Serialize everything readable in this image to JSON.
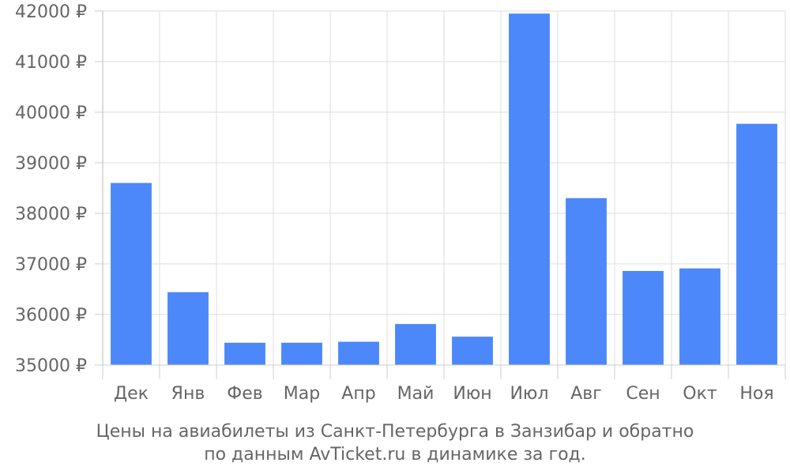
{
  "chart_data": {
    "type": "bar",
    "categories": [
      "Дек",
      "Янв",
      "Фев",
      "Мар",
      "Апр",
      "Май",
      "Июн",
      "Июл",
      "Авг",
      "Сен",
      "Окт",
      "Ноя"
    ],
    "values": [
      38600,
      36440,
      35440,
      35440,
      35460,
      35810,
      35560,
      41950,
      38300,
      36860,
      36910,
      39770
    ],
    "y_tick_labels": [
      "35000 ₽",
      "36000 ₽",
      "37000 ₽",
      "38000 ₽",
      "39000 ₽",
      "40000 ₽",
      "41000 ₽",
      "42000 ₽"
    ],
    "ylim": [
      35000,
      42000
    ],
    "grid": true,
    "bar_color": "#4d88fa",
    "caption_line1": "Цены на авиабилеты из Санкт-Петербурга в Занзибар и обратно",
    "caption_line2": "по данным AvTicket.ru в динамике за год."
  }
}
